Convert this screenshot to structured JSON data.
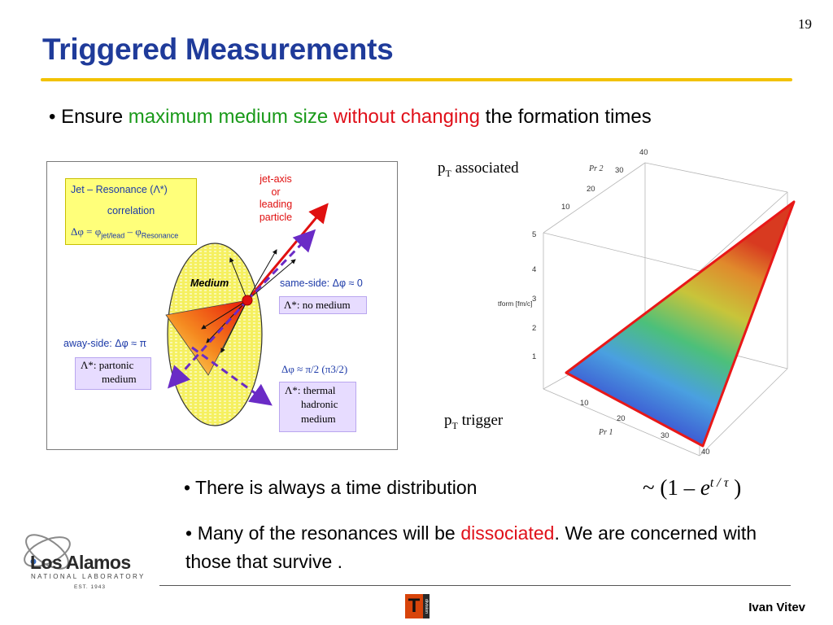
{
  "slide": {
    "page_number": "19",
    "title": "Triggered Measurements"
  },
  "bullet_1": {
    "bullet": "•",
    "text_a": "Ensure",
    "text_green": "maximum medium size",
    "text_red": "without changing",
    "text_b": "the formation times"
  },
  "diagram": {
    "jet_box": {
      "line1": "Jet – Resonance (Λ*)",
      "line2": "correlation",
      "line3_a": "Δφ = φ",
      "line3_sub1": "jet/lead",
      "line3_b": " – φ",
      "line3_sub2": "Resonance"
    },
    "jet_axis": [
      "jet-axis",
      "or",
      "leading",
      "particle"
    ],
    "medium_label": "Medium",
    "same_side": "same-side: Δφ ≈ 0",
    "no_medium": "Λ*: no medium",
    "away_side": "away-side: Δφ ≈ π",
    "partonic": [
      "Λ*: partonic",
      "medium"
    ],
    "thermal_header": "Δφ ≈ π/2 (π3/2)",
    "thermal": [
      "Λ*: thermal",
      "hadronic",
      "medium"
    ],
    "colors": {
      "jet_axis": "#e01010",
      "dashed": "#6a2bc6",
      "ellipse": "#f5f060",
      "cone": "#f07020"
    }
  },
  "plot": {
    "pt_associated_a": "p",
    "pt_associated_sub": "T",
    "pt_associated_b": " associated",
    "pt_trigger_a": "p",
    "pt_trigger_sub": "T",
    "pt_trigger_b": " trigger",
    "axis_top_label": "Pr 2",
    "axis_bottom_label": "Pr 1",
    "axis_vertical_label": "tform [fm/c]",
    "top_ticks": [
      "10",
      "20",
      "30",
      "40"
    ],
    "vertical_ticks": [
      "1",
      "2",
      "3",
      "4",
      "5"
    ],
    "bottom_ticks": [
      "10",
      "20",
      "30",
      "40"
    ],
    "surface_edge_color": "#e81818"
  },
  "bullet_2": {
    "bullet": "•",
    "text": "There is always a time distribution"
  },
  "formula": {
    "prefix": "~ (1 – ",
    "e": "e",
    "exponent": "t / τ",
    "suffix": " )"
  },
  "bullet_3": {
    "bullet": "•",
    "text_a": "Many of the resonances will be",
    "text_red": "dissociated",
    "text_b": ". We are concerned with those that survive ."
  },
  "footer": {
    "logo_name": "Los Alamos",
    "logo_sub": "NATIONAL LABORATORY",
    "logo_est": "EST. 1943",
    "t_division": "T",
    "t_division_side": "division",
    "author": "Ivan Vitev"
  }
}
